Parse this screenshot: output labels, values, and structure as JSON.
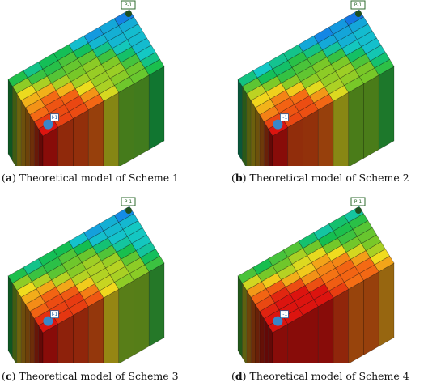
{
  "panels": [
    {
      "id": "a",
      "tag": "a",
      "caption": "Theoretical model of Scheme 1",
      "producer_label": "P-1",
      "injector_label": "I-1",
      "front_slope": 0.15,
      "front_offset": 0.12
    },
    {
      "id": "b",
      "tag": "b",
      "caption": "Theoretical model of Scheme 2",
      "producer_label": "P-1",
      "injector_label": "I-1",
      "front_slope": 0.25,
      "front_offset": 0.1
    },
    {
      "id": "c",
      "tag": "c",
      "caption": "Theoretical model of Scheme 3",
      "producer_label": "P-1",
      "injector_label": "I-1",
      "front_slope": 0.2,
      "front_offset": 0.14
    },
    {
      "id": "d",
      "tag": "d",
      "caption": "Theoretical model of Scheme 4",
      "producer_label": "P-1",
      "injector_label": "I-1",
      "front_slope": 0.45,
      "front_offset": 0.3
    }
  ],
  "colors": {
    "producer_box": "#2d6b2d",
    "injector_circle": "#3a86c8",
    "well_marker": "#1f4f1f"
  }
}
